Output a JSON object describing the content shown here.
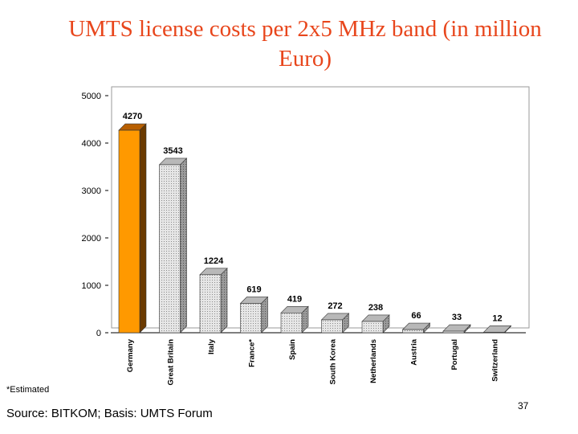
{
  "slide": {
    "title_line1": "UMTS license costs per 2x5 MHz band (in million",
    "title_line2": "Euro)",
    "note": "*Estimated",
    "source": "Source: BITKOM; Basis: UMTS Forum",
    "page_number": "37"
  },
  "colors": {
    "title": "#e8461c",
    "highlight": "#ff9900",
    "bar_fill": "#dcdcdc"
  },
  "chart_data": {
    "type": "bar",
    "title": "",
    "xlabel": "",
    "ylabel": "",
    "ylim": [
      0,
      5000
    ],
    "yticks": [
      "0",
      "1000",
      "2000",
      "3000",
      "4000",
      "5000"
    ],
    "categories": [
      "Germany",
      "Great Britain",
      "Italy",
      "France*",
      "Spain",
      "South Korea",
      "Netherlands",
      "Austria",
      "Portugal",
      "Switzerland"
    ],
    "values": [
      4270,
      3543,
      1224,
      619,
      419,
      272,
      238,
      66,
      33,
      12
    ],
    "highlighted": "Germany",
    "style": "3d",
    "grid": false,
    "legend": "none"
  }
}
